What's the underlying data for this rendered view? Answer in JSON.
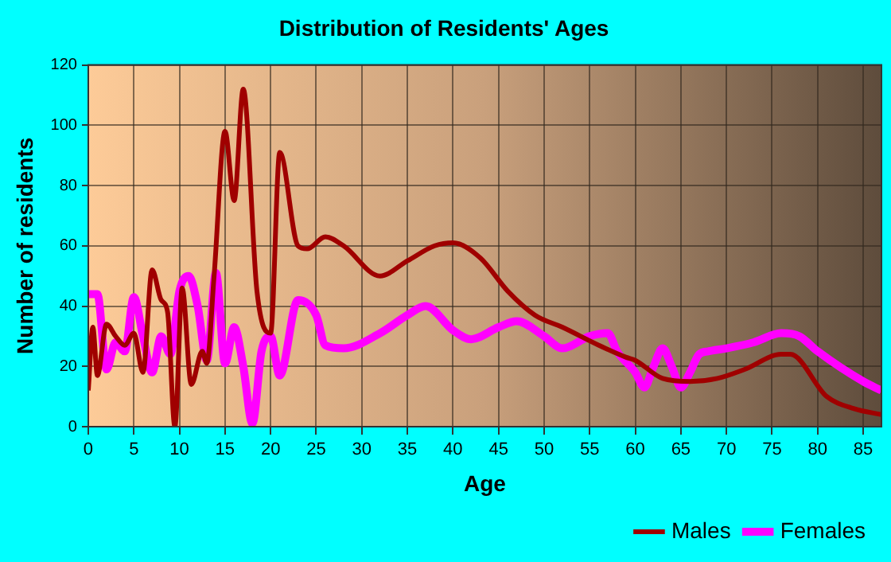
{
  "chart_data": {
    "type": "line",
    "title": "Distribution of Residents' Ages",
    "xlabel": "Age",
    "ylabel": "Number of residents",
    "xlim": [
      0,
      87
    ],
    "xticks": [
      0,
      5,
      10,
      15,
      20,
      25,
      30,
      35,
      40,
      45,
      50,
      55,
      60,
      65,
      70,
      75,
      80,
      85
    ],
    "ylim": [
      0,
      120
    ],
    "yticks": [
      0,
      20,
      40,
      60,
      80,
      100,
      120
    ],
    "grid": true,
    "legend": "bottom right",
    "marker": "none",
    "line_style": "solid",
    "series": [
      {
        "name": "Males",
        "color": "#a00000",
        "x": [
          0,
          0.5,
          1,
          2,
          3,
          4,
          5,
          6,
          7,
          8,
          8.7,
          9.5,
          10.3,
          11.3,
          12.5,
          13,
          13.8,
          15,
          16,
          17,
          18.5,
          20,
          21,
          23,
          24,
          26,
          28,
          32,
          35,
          38,
          40,
          43,
          46,
          49,
          52,
          56,
          59,
          60,
          63,
          66,
          69,
          72,
          76,
          77,
          81,
          84,
          87
        ],
        "values": [
          12,
          33,
          17,
          34,
          30,
          27,
          31,
          18,
          52,
          42,
          38,
          0,
          46,
          14,
          25,
          21,
          50,
          98,
          75,
          112,
          45,
          31,
          91,
          60,
          59,
          63,
          60,
          50,
          55,
          60,
          61,
          56,
          45,
          37,
          33,
          27,
          23,
          22,
          16,
          15,
          16,
          19,
          24,
          24,
          10,
          6,
          4
        ]
      },
      {
        "name": "Females",
        "color": "#ff00ff",
        "x": [
          0,
          1,
          2,
          3,
          4,
          5,
          6,
          7,
          8,
          9,
          10,
          11,
          12,
          13,
          14,
          15,
          16,
          17,
          18,
          19,
          20,
          21,
          23,
          25,
          26,
          28,
          32,
          35,
          37,
          40,
          42,
          45,
          47,
          50,
          52,
          55,
          57,
          58,
          60,
          61,
          62,
          63,
          64,
          65,
          66,
          67,
          68,
          70,
          73,
          76,
          78,
          80,
          85,
          87
        ],
        "values": [
          44,
          44,
          19,
          28,
          25,
          43,
          30,
          18,
          30,
          24,
          45,
          50,
          40,
          22,
          51,
          21,
          33,
          20,
          1,
          25,
          30,
          17,
          42,
          37,
          27,
          26,
          31,
          37,
          40,
          32,
          29,
          33,
          35,
          30,
          26,
          30,
          31,
          25,
          18,
          13,
          20,
          26,
          20,
          13,
          18,
          24,
          25,
          26,
          28,
          31,
          30,
          25,
          15,
          12
        ]
      }
    ]
  }
}
